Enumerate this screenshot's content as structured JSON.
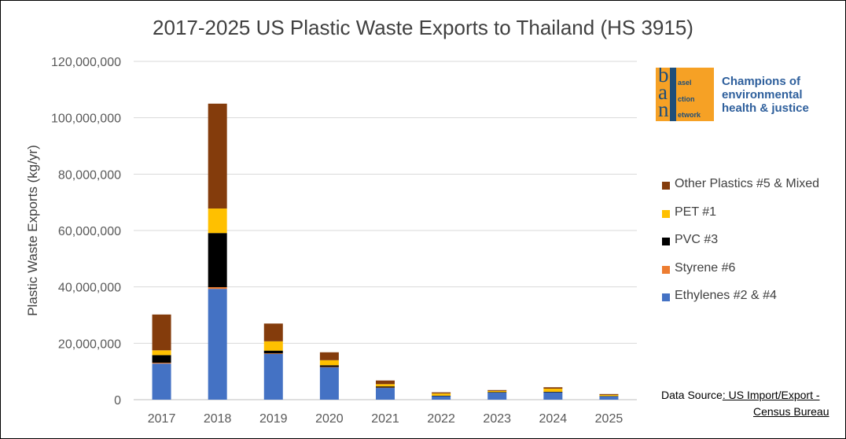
{
  "chart_data": {
    "type": "bar",
    "stacked": true,
    "title": "2017-2025 US Plastic Waste Exports to Thailand (HS 3915)",
    "xlabel": "",
    "ylabel": "Plastic Waste Exports (kg/yr)",
    "ylim": [
      0,
      120000000
    ],
    "yticks": [
      0,
      20000000,
      40000000,
      60000000,
      80000000,
      100000000,
      120000000
    ],
    "ytick_labels": [
      "0",
      "20,000,000",
      "40,000,000",
      "60,000,000",
      "80,000,000",
      "100,000,000",
      "120,000,000"
    ],
    "categories": [
      "2017",
      "2018",
      "2019",
      "2020",
      "2021",
      "2022",
      "2023",
      "2024",
      "2025"
    ],
    "grid": "horizontal",
    "legend_position": "right",
    "series": [
      {
        "name": "Ethylenes #2 & #4",
        "color": "#4472c4",
        "values": [
          12800000,
          39300000,
          16200000,
          11500000,
          4200000,
          1300000,
          2500000,
          2600000,
          1200000
        ]
      },
      {
        "name": "Styrene #6",
        "color": "#ed7d31",
        "values": [
          300000,
          600000,
          200000,
          100000,
          100000,
          0,
          0,
          0,
          0
        ]
      },
      {
        "name": "PVC #3",
        "color": "#000000",
        "values": [
          2700000,
          19200000,
          1000000,
          600000,
          400000,
          100000,
          200000,
          200000,
          100000
        ]
      },
      {
        "name": "PET #1",
        "color": "#ffc000",
        "values": [
          1700000,
          8700000,
          3300000,
          1800000,
          800000,
          800000,
          400000,
          1100000,
          400000
        ]
      },
      {
        "name": "Other Plastics #5 & Mixed",
        "color": "#843c0c",
        "values": [
          12700000,
          37200000,
          6300000,
          2800000,
          1300000,
          400000,
          300000,
          500000,
          300000
        ]
      }
    ],
    "legend_order": [
      "Other Plastics #5 & Mixed",
      "PET #1",
      "PVC #3",
      "Styrene #6",
      "Ethylenes #2 & #4"
    ]
  },
  "logo": {
    "letters": [
      "b",
      "a",
      "n"
    ],
    "words": [
      "asel",
      "ction",
      "etwork"
    ],
    "tagline": [
      "Champions of",
      "environmental",
      "health & justice"
    ],
    "colors": {
      "background": "#f6a125",
      "ink": "#1f4e79"
    }
  },
  "source": {
    "prefix": "Data Source",
    "link_part1": ": US Import/Export -",
    "link_part2": "Census Bureau"
  }
}
